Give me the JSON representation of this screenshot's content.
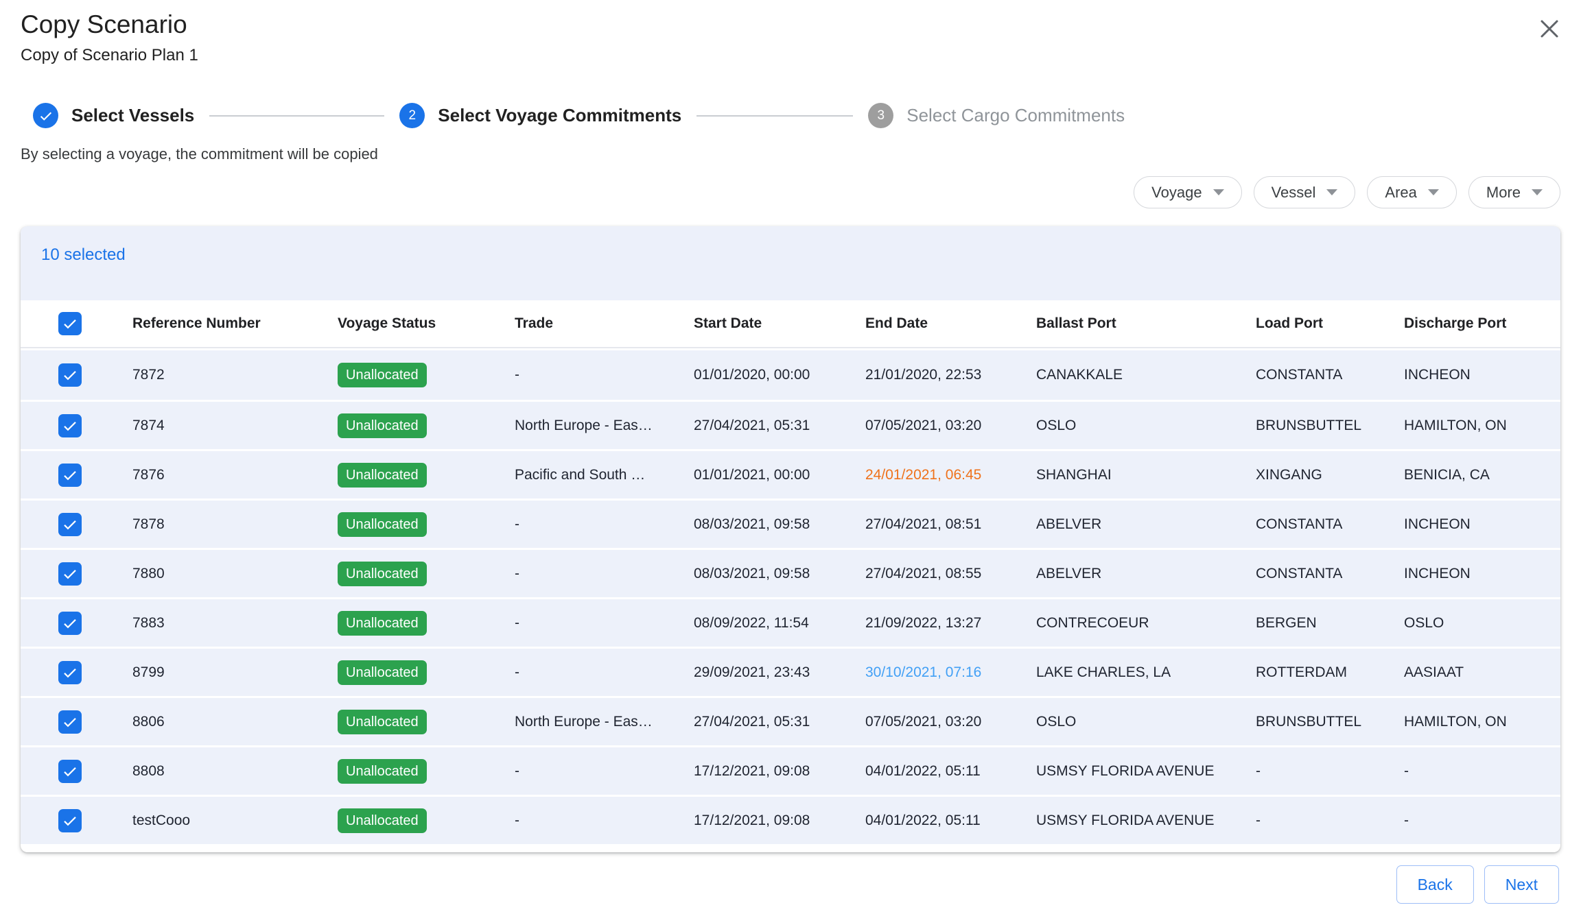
{
  "modal": {
    "title": "Copy Scenario",
    "subtitle": "Copy of Scenario Plan 1",
    "hint": "By selecting a voyage, the commitment will be copied"
  },
  "stepper": {
    "steps": [
      {
        "number": "1",
        "label": "Select Vessels",
        "state": "completed"
      },
      {
        "number": "2",
        "label": "Select Voyage Commitments",
        "state": "active"
      },
      {
        "number": "3",
        "label": "Select Cargo Commitments",
        "state": "pending"
      }
    ]
  },
  "filters": [
    {
      "label": "Voyage"
    },
    {
      "label": "Vessel"
    },
    {
      "label": "Area"
    },
    {
      "label": "More"
    }
  ],
  "table": {
    "selection_summary": "10 selected",
    "header_checkbox_checked": true,
    "columns": [
      "Reference Number",
      "Voyage Status",
      "Trade",
      "Start Date",
      "End Date",
      "Ballast Port",
      "Load Port",
      "Discharge Port"
    ],
    "rows": [
      {
        "checked": true,
        "reference": "7872",
        "status": "Unallocated",
        "trade": "-",
        "start": "01/01/2020, 00:00",
        "end": "21/01/2020, 22:53",
        "end_color": "default",
        "ballast": "CANAKKALE",
        "load": "CONSTANTA",
        "discharge": "INCHEON"
      },
      {
        "checked": true,
        "reference": "7874",
        "status": "Unallocated",
        "trade": "North Europe - Eas…",
        "start": "27/04/2021, 05:31",
        "end": "07/05/2021, 03:20",
        "end_color": "default",
        "ballast": "OSLO",
        "load": "BRUNSBUTTEL",
        "discharge": "HAMILTON, ON"
      },
      {
        "checked": true,
        "reference": "7876",
        "status": "Unallocated",
        "trade": "Pacific and South …",
        "start": "01/01/2021, 00:00",
        "end": "24/01/2021, 06:45",
        "end_color": "orange",
        "ballast": "SHANGHAI",
        "load": "XINGANG",
        "discharge": "BENICIA, CA"
      },
      {
        "checked": true,
        "reference": "7878",
        "status": "Unallocated",
        "trade": "-",
        "start": "08/03/2021, 09:58",
        "end": "27/04/2021, 08:51",
        "end_color": "default",
        "ballast": "ABELVER",
        "load": "CONSTANTA",
        "discharge": "INCHEON"
      },
      {
        "checked": true,
        "reference": "7880",
        "status": "Unallocated",
        "trade": "-",
        "start": "08/03/2021, 09:58",
        "end": "27/04/2021, 08:55",
        "end_color": "default",
        "ballast": "ABELVER",
        "load": "CONSTANTA",
        "discharge": "INCHEON"
      },
      {
        "checked": true,
        "reference": "7883",
        "status": "Unallocated",
        "trade": "-",
        "start": "08/09/2022, 11:54",
        "end": "21/09/2022, 13:27",
        "end_color": "default",
        "ballast": "CONTRECOEUR",
        "load": "BERGEN",
        "discharge": "OSLO"
      },
      {
        "checked": true,
        "reference": "8799",
        "status": "Unallocated",
        "trade": "-",
        "start": "29/09/2021, 23:43",
        "end": "30/10/2021, 07:16",
        "end_color": "blue",
        "ballast": "LAKE CHARLES, LA",
        "load": "ROTTERDAM",
        "discharge": "AASIAAT"
      },
      {
        "checked": true,
        "reference": "8806",
        "status": "Unallocated",
        "trade": "North Europe - Eas…",
        "start": "27/04/2021, 05:31",
        "end": "07/05/2021, 03:20",
        "end_color": "default",
        "ballast": "OSLO",
        "load": "BRUNSBUTTEL",
        "discharge": "HAMILTON, ON"
      },
      {
        "checked": true,
        "reference": "8808",
        "status": "Unallocated",
        "trade": "-",
        "start": "17/12/2021, 09:08",
        "end": "04/01/2022, 05:11",
        "end_color": "default",
        "ballast": "USMSY FLORIDA AVENUE",
        "load": "-",
        "discharge": "-"
      },
      {
        "checked": true,
        "reference": "testCooo",
        "status": "Unallocated",
        "trade": "-",
        "start": "17/12/2021, 09:08",
        "end": "04/01/2022, 05:11",
        "end_color": "default",
        "ballast": "USMSY FLORIDA AVENUE",
        "load": "-",
        "discharge": "-"
      }
    ]
  },
  "footer": {
    "back_label": "Back",
    "next_label": "Next"
  },
  "colors": {
    "primary_blue": "#1A73E8",
    "badge_green": "#2CA24E",
    "end_date_overdue_orange": "#EF721B",
    "end_date_highlight_blue": "#42A0F5",
    "row_background": "#EDF1FA",
    "pending_step_gray": "#9E9E9E"
  }
}
